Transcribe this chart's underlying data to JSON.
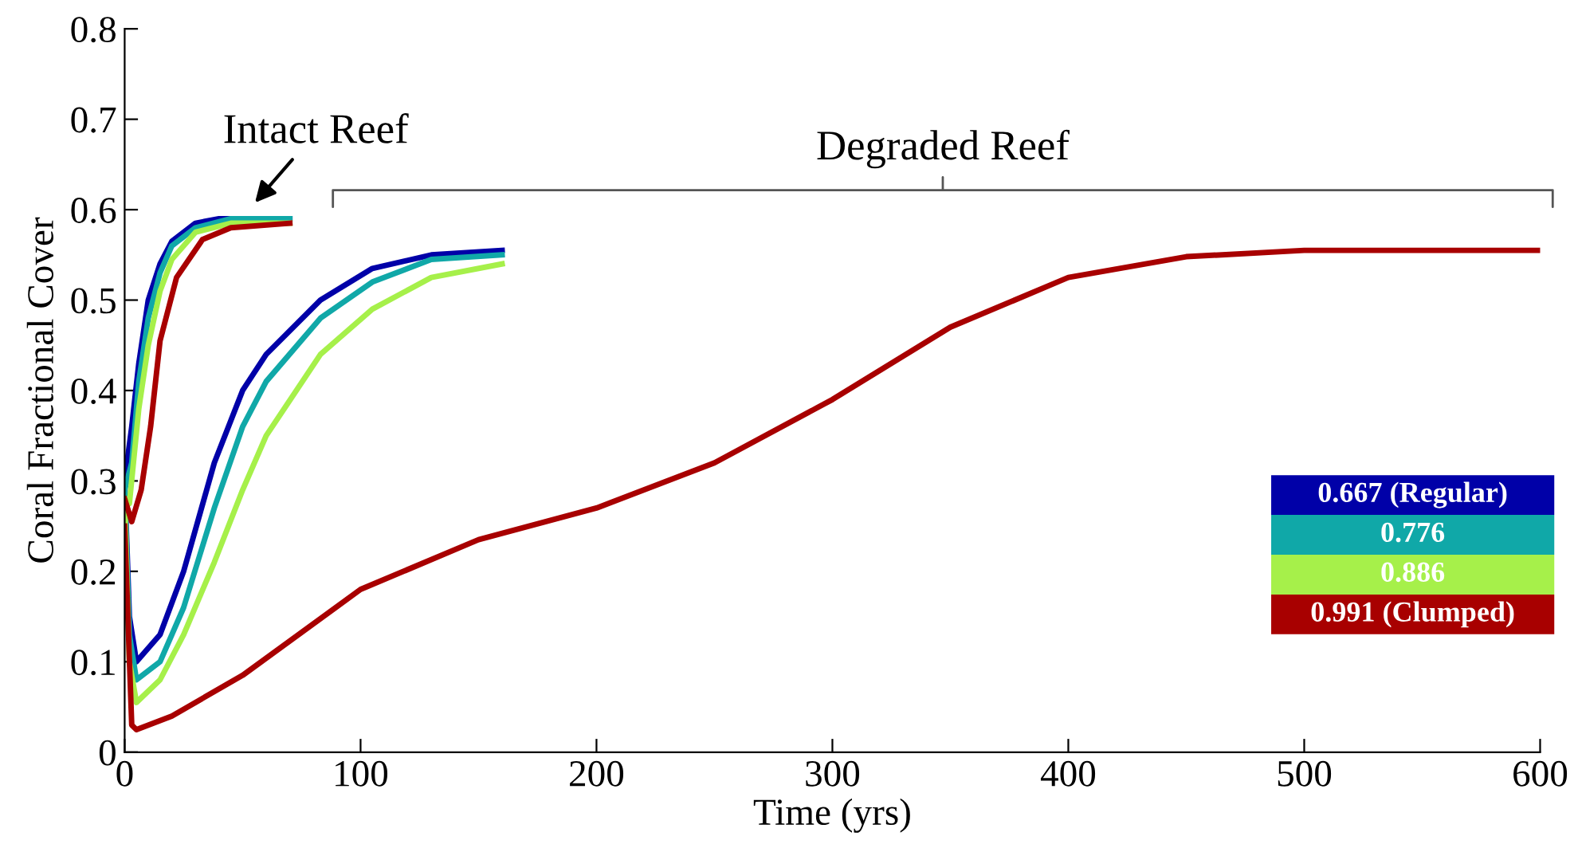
{
  "chart_data": {
    "type": "line",
    "xlabel": "Time (yrs)",
    "ylabel": "Coral Fractional Cover",
    "xlim": [
      0,
      600
    ],
    "xticks": [
      0,
      100,
      200,
      300,
      400,
      500,
      600
    ],
    "ylim": [
      0,
      0.8
    ],
    "yticks": [
      0,
      0.1,
      0.2,
      0.3,
      0.4,
      0.5,
      0.6,
      0.7,
      0.8
    ],
    "grid": false,
    "legend": "bottom right",
    "marker": "none",
    "line_style": "solid",
    "annotations": [
      "Intact Reef",
      "Degraded Reef"
    ],
    "series": [
      {
        "name": "0.667 (Regular)",
        "color": "#0000a8",
        "x": [
          0,
          3,
          6,
          10,
          15,
          20,
          30,
          40,
          70,
          null,
          0,
          2,
          5,
          15,
          25,
          38,
          50,
          60,
          83,
          105,
          130,
          160
        ],
        "values": [
          0.3,
          0.36,
          0.43,
          0.5,
          0.54,
          0.565,
          0.585,
          0.59,
          0.59,
          null,
          0.3,
          0.15,
          0.1,
          0.13,
          0.2,
          0.32,
          0.4,
          0.44,
          0.5,
          0.535,
          0.55,
          0.555
        ]
      },
      {
        "name": "0.776",
        "color": "#10a8a8",
        "x": [
          0,
          3,
          6,
          10,
          15,
          20,
          30,
          45,
          70,
          null,
          0,
          2,
          5,
          15,
          25,
          38,
          50,
          60,
          83,
          105,
          130,
          160
        ],
        "values": [
          0.29,
          0.32,
          0.41,
          0.48,
          0.53,
          0.56,
          0.58,
          0.59,
          0.59,
          null,
          0.29,
          0.13,
          0.08,
          0.1,
          0.16,
          0.27,
          0.36,
          0.41,
          0.48,
          0.52,
          0.545,
          0.55
        ]
      },
      {
        "name": "0.886",
        "color": "#a6f04a",
        "x": [
          0,
          2,
          6,
          10,
          15,
          20,
          30,
          45,
          70,
          null,
          0,
          2,
          5,
          15,
          25,
          38,
          50,
          60,
          83,
          105,
          130,
          160
        ],
        "values": [
          0.28,
          0.275,
          0.38,
          0.45,
          0.51,
          0.545,
          0.575,
          0.585,
          0.585,
          null,
          0.28,
          0.1,
          0.055,
          0.08,
          0.13,
          0.21,
          0.29,
          0.35,
          0.44,
          0.49,
          0.525,
          0.54
        ]
      },
      {
        "name": "0.991 (Clumped)",
        "color": "#a80000",
        "x": [
          0,
          3,
          7,
          11,
          15,
          22,
          33,
          45,
          70,
          null,
          0,
          3,
          5,
          20,
          50,
          100,
          150,
          200,
          250,
          300,
          350,
          400,
          450,
          500,
          600
        ],
        "values": [
          0.28,
          0.255,
          0.29,
          0.36,
          0.455,
          0.525,
          0.567,
          0.58,
          0.585,
          null,
          0.25,
          0.03,
          0.025,
          0.04,
          0.085,
          0.18,
          0.235,
          0.27,
          0.32,
          0.39,
          0.47,
          0.525,
          0.548,
          0.555,
          0.555
        ]
      }
    ]
  }
}
